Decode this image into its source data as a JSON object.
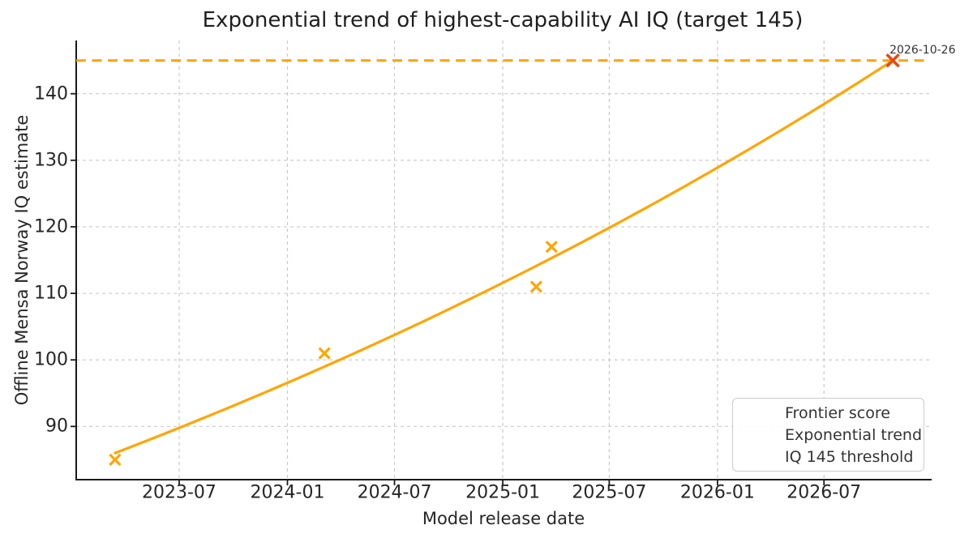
{
  "chart_data": {
    "type": "scatter+line",
    "title": "Exponential trend of highest-capability AI IQ (target 145)",
    "xlabel": "Model release date",
    "ylabel": "Offline Mensa Norway IQ estimate",
    "xlim": [
      "2023-01-07",
      "2026-12-31"
    ],
    "ylim": [
      82,
      148
    ],
    "grid": {
      "visible": true,
      "style": "dashed",
      "color": "#c9c9c9"
    },
    "axis_color": "#1a1a1a",
    "text_color": "#262626",
    "x_ticks": [
      {
        "label": "2023-07",
        "date": "2023-07-01"
      },
      {
        "label": "2024-01",
        "date": "2024-01-01"
      },
      {
        "label": "2024-07",
        "date": "2024-07-01"
      },
      {
        "label": "2025-01",
        "date": "2025-01-01"
      },
      {
        "label": "2025-07",
        "date": "2025-07-01"
      },
      {
        "label": "2026-01",
        "date": "2026-01-01"
      },
      {
        "label": "2026-07",
        "date": "2026-07-01"
      }
    ],
    "y_ticks": [
      {
        "label": "90",
        "value": 90
      },
      {
        "label": "100",
        "value": 100
      },
      {
        "label": "110",
        "value": 110
      },
      {
        "label": "120",
        "value": 120
      },
      {
        "label": "130",
        "value": 130
      },
      {
        "label": "140",
        "value": 140
      }
    ],
    "series": [
      {
        "name": "Frontier score",
        "type": "scatter",
        "marker": "x",
        "color": "#ffa500",
        "points": [
          {
            "date": "2023-03-14",
            "iq": 85
          },
          {
            "date": "2024-03-04",
            "iq": 101
          },
          {
            "date": "2025-02-27",
            "iq": 111
          },
          {
            "date": "2025-03-25",
            "iq": 117
          }
        ]
      },
      {
        "name": "Exponential trend",
        "type": "line",
        "curve": "exponential",
        "color": "#ffa500",
        "start": {
          "date": "2023-03-14",
          "iq": 86
        },
        "end": {
          "date": "2026-10-26",
          "iq": 145
        }
      },
      {
        "name": "IQ 145 threshold",
        "type": "hline",
        "style": "dashed",
        "color": "#ffa500",
        "value": 145
      }
    ],
    "threshold_crossing": {
      "date": "2026-10-26",
      "iq": 145,
      "marker": "x",
      "color": "#e8490f",
      "annotation": "2026-10-26"
    },
    "legend": {
      "position": "lower right"
    }
  }
}
